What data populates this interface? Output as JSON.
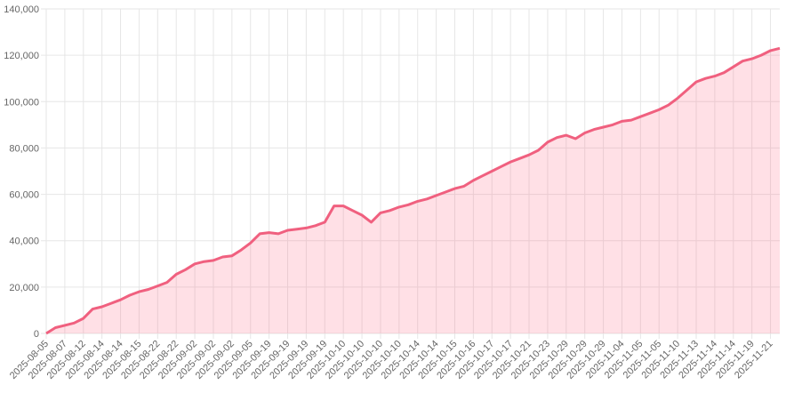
{
  "chart_data": {
    "type": "area",
    "categories": [
      "2025-08-05",
      null,
      "2025-08-07",
      null,
      "2025-08-12",
      null,
      "2025-08-14",
      null,
      "2025-08-14",
      null,
      "2025-08-15",
      null,
      "2025-08-22",
      null,
      "2025-08-22",
      null,
      "2025-09-02",
      null,
      "2025-09-02",
      null,
      "2025-09-02",
      null,
      "2025-09-05",
      null,
      "2025-09-19",
      null,
      "2025-09-19",
      null,
      "2025-09-19",
      null,
      "2025-09-19",
      null,
      "2025-10-10",
      null,
      "2025-10-10",
      null,
      "2025-10-10",
      null,
      "2025-10-10",
      null,
      "2025-10-14",
      null,
      "2025-10-14",
      null,
      "2025-10-15",
      null,
      "2025-10-16",
      null,
      "2025-10-17",
      null,
      "2025-10-17",
      null,
      "2025-10-21",
      null,
      "2025-10-23",
      null,
      "2025-10-29",
      null,
      "2025-10-29",
      null,
      "2025-10-29",
      null,
      "2025-11-04",
      null,
      "2025-11-05",
      null,
      "2025-11-05",
      null,
      "2025-11-10",
      null,
      "2025-11-13",
      null,
      "2025-11-14",
      null,
      "2025-11-14",
      null,
      "2025-11-19",
      null,
      "2025-11-21",
      null
    ],
    "values": [
      0,
      2500,
      3500,
      4500,
      6500,
      10500,
      11500,
      13000,
      14500,
      16500,
      18000,
      19000,
      20500,
      22000,
      25500,
      27500,
      30000,
      31000,
      31500,
      33000,
      33500,
      36000,
      39000,
      43000,
      43500,
      43000,
      44500,
      45000,
      45500,
      46500,
      48000,
      55000,
      55000,
      53000,
      51000,
      48000,
      52000,
      53000,
      54500,
      55500,
      57000,
      58000,
      59500,
      61000,
      62500,
      63500,
      66000,
      68000,
      70000,
      72000,
      74000,
      75500,
      77000,
      79000,
      82500,
      84500,
      85500,
      84000,
      86500,
      88000,
      89000,
      90000,
      91500,
      92000,
      93500,
      95000,
      96500,
      98500,
      101500,
      105000,
      108500,
      110000,
      111000,
      112500,
      115000,
      117500,
      118500,
      120000,
      122000,
      123000
    ],
    "color": "#f0607f",
    "fill": "rgba(255,99,132,0.2)",
    "ylim": [
      0,
      140000
    ],
    "yticks": [
      0,
      {
        "value": 20000,
        "label": "20,000"
      },
      {
        "value": 40000,
        "label": "40,000"
      },
      {
        "value": 60000,
        "label": "60,000"
      },
      {
        "value": 80000,
        "label": "80,000"
      },
      {
        "value": 100000,
        "label": "100,000"
      },
      {
        "value": 120000,
        "label": "120,000"
      },
      {
        "value": 140000,
        "label": "140,000"
      }
    ],
    "grid": true
  }
}
